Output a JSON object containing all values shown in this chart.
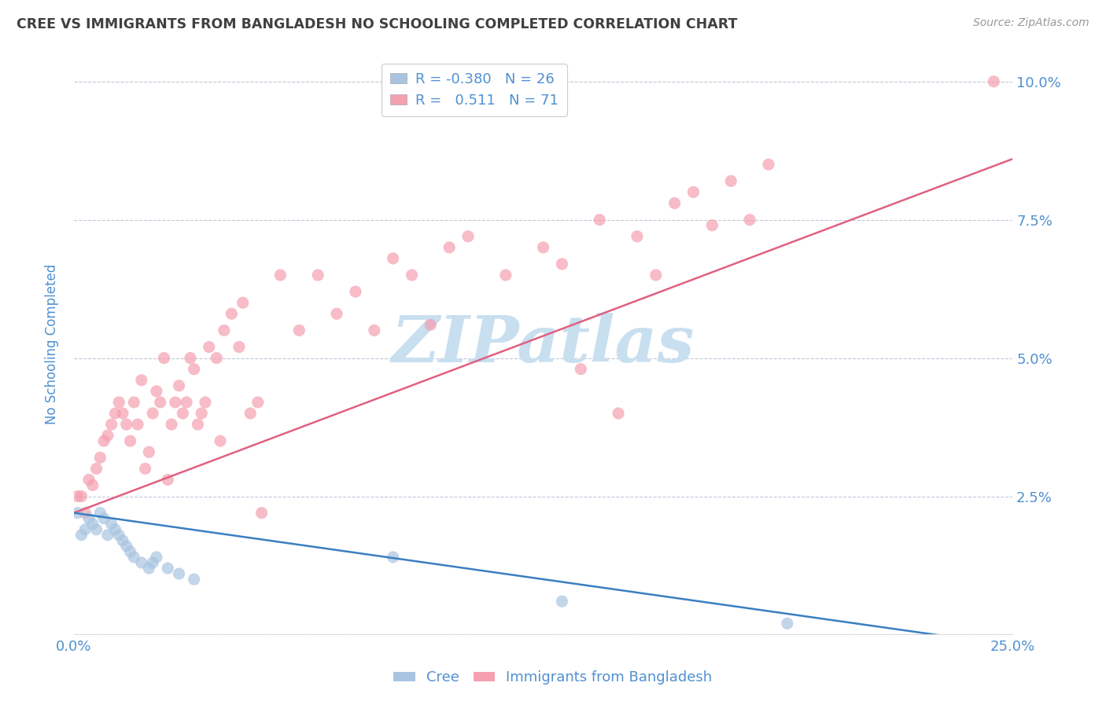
{
  "title": "CREE VS IMMIGRANTS FROM BANGLADESH NO SCHOOLING COMPLETED CORRELATION CHART",
  "source": "Source: ZipAtlas.com",
  "ylabel": "No Schooling Completed",
  "xlim": [
    0.0,
    0.25
  ],
  "ylim": [
    0.0,
    0.105
  ],
  "xticks": [
    0.0,
    0.05,
    0.1,
    0.15,
    0.2,
    0.25
  ],
  "yticks": [
    0.0,
    0.025,
    0.05,
    0.075,
    0.1
  ],
  "cree_color": "#a8c4e0",
  "bangladesh_color": "#f4a0b0",
  "cree_line_color": "#3a7fc1",
  "bangladesh_line_color": "#e06080",
  "watermark": "ZIPatlas",
  "watermark_color": "#c8dff0",
  "background_color": "#ffffff",
  "grid_color": "#c0c8d8",
  "title_color": "#404040",
  "axis_label_color": "#5090d0",
  "cree_scatter_x": [
    0.001,
    0.002,
    0.003,
    0.004,
    0.005,
    0.006,
    0.007,
    0.008,
    0.009,
    0.01,
    0.011,
    0.012,
    0.013,
    0.014,
    0.015,
    0.016,
    0.018,
    0.02,
    0.021,
    0.022,
    0.025,
    0.028,
    0.032,
    0.085,
    0.13,
    0.19
  ],
  "cree_scatter_y": [
    0.022,
    0.018,
    0.019,
    0.021,
    0.02,
    0.019,
    0.022,
    0.021,
    0.018,
    0.02,
    0.019,
    0.018,
    0.017,
    0.016,
    0.015,
    0.014,
    0.013,
    0.012,
    0.013,
    0.014,
    0.012,
    0.011,
    0.01,
    0.014,
    0.006,
    0.002
  ],
  "bangladesh_scatter_x": [
    0.001,
    0.002,
    0.003,
    0.004,
    0.005,
    0.006,
    0.007,
    0.008,
    0.009,
    0.01,
    0.011,
    0.012,
    0.013,
    0.014,
    0.015,
    0.016,
    0.017,
    0.018,
    0.019,
    0.02,
    0.021,
    0.022,
    0.023,
    0.024,
    0.025,
    0.026,
    0.027,
    0.028,
    0.029,
    0.03,
    0.031,
    0.032,
    0.033,
    0.034,
    0.035,
    0.036,
    0.038,
    0.039,
    0.04,
    0.042,
    0.044,
    0.045,
    0.047,
    0.049,
    0.05,
    0.055,
    0.06,
    0.065,
    0.07,
    0.075,
    0.08,
    0.085,
    0.09,
    0.095,
    0.1,
    0.105,
    0.115,
    0.125,
    0.13,
    0.135,
    0.14,
    0.145,
    0.15,
    0.155,
    0.16,
    0.165,
    0.17,
    0.175,
    0.18,
    0.185,
    0.245
  ],
  "bangladesh_scatter_y": [
    0.025,
    0.025,
    0.022,
    0.028,
    0.027,
    0.03,
    0.032,
    0.035,
    0.036,
    0.038,
    0.04,
    0.042,
    0.04,
    0.038,
    0.035,
    0.042,
    0.038,
    0.046,
    0.03,
    0.033,
    0.04,
    0.044,
    0.042,
    0.05,
    0.028,
    0.038,
    0.042,
    0.045,
    0.04,
    0.042,
    0.05,
    0.048,
    0.038,
    0.04,
    0.042,
    0.052,
    0.05,
    0.035,
    0.055,
    0.058,
    0.052,
    0.06,
    0.04,
    0.042,
    0.022,
    0.065,
    0.055,
    0.065,
    0.058,
    0.062,
    0.055,
    0.068,
    0.065,
    0.056,
    0.07,
    0.072,
    0.065,
    0.07,
    0.067,
    0.048,
    0.075,
    0.04,
    0.072,
    0.065,
    0.078,
    0.08,
    0.074,
    0.082,
    0.075,
    0.085,
    0.1
  ],
  "bang_line_x0": 0.0,
  "bang_line_y0": 0.022,
  "bang_line_x1": 0.25,
  "bang_line_y1": 0.086,
  "cree_line_x0": 0.0,
  "cree_line_y0": 0.022,
  "cree_line_x1": 0.25,
  "cree_line_y1": -0.002
}
